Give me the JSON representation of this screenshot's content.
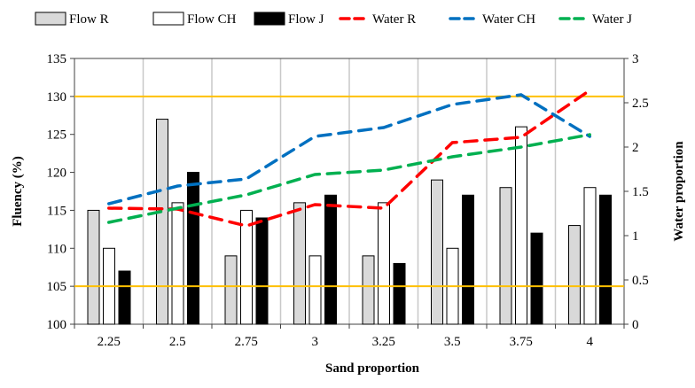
{
  "chart_data": {
    "type": "bar",
    "categories": [
      "2.25",
      "2.5",
      "2.75",
      "3",
      "3.25",
      "3.5",
      "3.75",
      "4"
    ],
    "xlabel": "Sand proportion",
    "ylabel": "Fluency (%)",
    "y2label": "Water proportion",
    "ylim": [
      100,
      135
    ],
    "y2lim": [
      0,
      3
    ],
    "yticks": [
      "100",
      "105",
      "110",
      "115",
      "120",
      "125",
      "130",
      "135"
    ],
    "y2ticks": [
      "0",
      "0.5",
      "1",
      "1.5",
      "2",
      "2.5",
      "3"
    ],
    "grid": "vertical",
    "legend": "top",
    "reference_lines": [
      {
        "value": 130,
        "color": "#FFC000"
      },
      {
        "value": 105,
        "color": "#FFC000"
      }
    ],
    "bar_series": [
      {
        "name": "Flow R",
        "color": "#D9D9D9",
        "values": [
          115,
          127,
          109,
          116,
          109,
          119,
          118,
          113
        ]
      },
      {
        "name": "Flow CH",
        "color": "#FFFFFF",
        "values": [
          110,
          116,
          115,
          109,
          116,
          110,
          126,
          118
        ]
      },
      {
        "name": "Flow J",
        "color": "#000000",
        "values": [
          107,
          120,
          114,
          117,
          108,
          117,
          112,
          117
        ]
      }
    ],
    "line_series": [
      {
        "name": "Water R",
        "color": "#FF0000",
        "values": [
          1.31,
          1.3,
          1.11,
          1.35,
          1.31,
          2.05,
          2.11,
          2.64
        ]
      },
      {
        "name": "Water CH",
        "color": "#0070C0",
        "values": [
          1.36,
          1.56,
          1.64,
          2.12,
          2.22,
          2.48,
          2.59,
          2.12
        ]
      },
      {
        "name": "Water J",
        "color": "#00B050",
        "values": [
          1.15,
          1.31,
          1.46,
          1.69,
          1.74,
          1.89,
          2.0,
          2.14
        ]
      }
    ]
  }
}
